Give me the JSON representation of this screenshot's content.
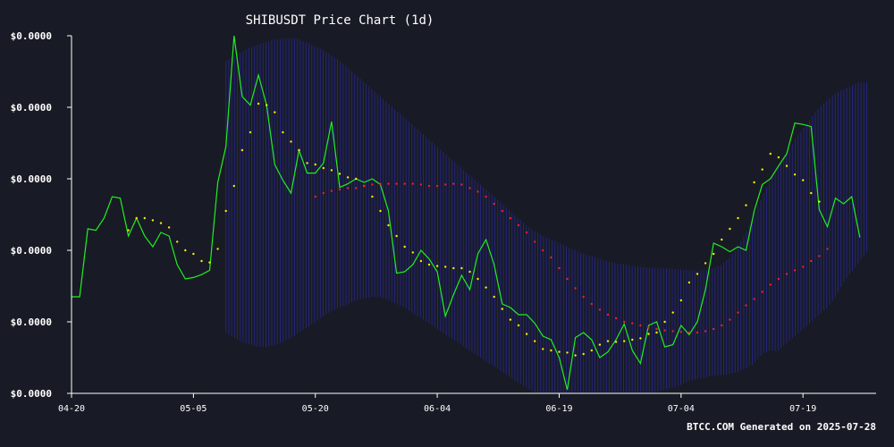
{
  "chart_data": {
    "type": "line",
    "title": "SHIBUSDT Price Chart (1d)",
    "footer": "BTCC.COM Generated on 2025-07-28",
    "xlabel": "",
    "ylabel": "",
    "x_tick_labels": [
      "04-20",
      "05-05",
      "05-20",
      "06-04",
      "06-19",
      "07-04",
      "07-19"
    ],
    "y_tick_labels": [
      "$0.0000",
      "$0.0000",
      "$0.0000",
      "$0.0000",
      "$0.0000",
      "$0.0000"
    ],
    "y_tick_values": [
      0,
      1,
      2,
      3,
      4,
      5
    ],
    "ylim": [
      0,
      5
    ],
    "x_range": [
      0,
      99
    ],
    "x_tick_positions": [
      0,
      15,
      30,
      45,
      60,
      75,
      90
    ],
    "grid": false,
    "legend": "none",
    "colors": {
      "price": "#22ee22",
      "short_ma": "#ffee00",
      "long_ma": "#ee2222",
      "band": "#2a2a9a",
      "axis": "#ffffff",
      "background": "#181b25"
    },
    "series": [
      {
        "key": "price",
        "x_start": 0,
        "values": [
          1.35,
          1.35,
          2.3,
          2.28,
          2.45,
          2.75,
          2.73,
          2.2,
          2.45,
          2.2,
          2.05,
          2.25,
          2.2,
          1.8,
          1.6,
          1.62,
          1.66,
          1.72,
          2.95,
          3.45,
          5.0,
          4.15,
          4.03,
          4.45,
          4.03,
          3.2,
          2.98,
          2.8,
          3.4,
          3.08,
          3.08,
          3.22,
          3.8,
          2.88,
          2.93,
          3.0,
          2.95,
          3.0,
          2.92,
          2.55,
          1.68,
          1.7,
          1.8,
          2.0,
          1.88,
          1.7,
          1.08,
          1.38,
          1.65,
          1.45,
          1.95,
          2.15,
          1.8,
          1.25,
          1.2,
          1.1,
          1.1,
          0.98,
          0.8,
          0.75,
          0.5,
          0.05,
          0.78,
          0.85,
          0.75,
          0.5,
          0.58,
          0.75,
          0.97,
          0.6,
          0.42,
          0.95,
          1.0,
          0.65,
          0.68,
          0.95,
          0.82,
          1.0,
          1.45,
          2.1,
          2.05,
          1.98,
          2.05,
          2.0,
          2.55,
          2.92,
          3.0,
          3.18,
          3.35,
          3.78,
          3.76,
          3.73,
          2.57,
          2.33,
          2.73,
          2.65,
          2.75,
          2.18
        ]
      },
      {
        "key": "short_ma",
        "x_start": 7,
        "values": [
          2.28,
          2.45,
          2.45,
          2.42,
          2.38,
          2.32,
          2.12,
          2.0,
          1.95,
          1.85,
          1.83,
          2.02,
          2.55,
          2.9,
          3.4,
          3.65,
          4.05,
          4.03,
          3.93,
          3.65,
          3.52,
          3.4,
          3.22,
          3.2,
          3.15,
          3.12,
          3.07,
          3.02,
          3.0,
          2.9,
          2.75,
          2.55,
          2.35,
          2.2,
          2.05,
          1.97,
          1.85,
          1.8,
          1.78,
          1.77,
          1.75,
          1.75,
          1.7,
          1.6,
          1.48,
          1.35,
          1.18,
          1.03,
          0.95,
          0.83,
          0.73,
          0.62,
          0.6,
          0.58,
          0.57,
          0.53,
          0.55,
          0.6,
          0.68,
          0.73,
          0.72,
          0.73,
          0.75,
          0.77,
          0.83,
          0.85,
          1.0,
          1.13,
          1.3,
          1.55,
          1.67,
          1.82,
          1.95,
          2.15,
          2.3,
          2.45,
          2.63,
          2.95,
          3.13,
          3.35,
          3.3,
          3.18,
          3.06,
          2.98,
          2.8,
          2.68
        ]
      },
      {
        "key": "long_ma",
        "x_start": 30,
        "values": [
          2.75,
          2.8,
          2.83,
          2.85,
          2.87,
          2.87,
          2.9,
          2.92,
          2.93,
          2.93,
          2.93,
          2.93,
          2.93,
          2.92,
          2.9,
          2.9,
          2.92,
          2.93,
          2.92,
          2.87,
          2.82,
          2.75,
          2.65,
          2.55,
          2.45,
          2.35,
          2.25,
          2.12,
          2.0,
          1.9,
          1.75,
          1.6,
          1.47,
          1.35,
          1.25,
          1.17,
          1.1,
          1.05,
          1.0,
          0.98,
          0.95,
          0.92,
          0.9,
          0.88,
          0.87,
          0.86,
          0.85,
          0.85,
          0.87,
          0.9,
          0.95,
          1.03,
          1.13,
          1.23,
          1.32,
          1.42,
          1.52,
          1.6,
          1.67,
          1.72,
          1.77,
          1.85,
          1.92,
          2.02
        ]
      },
      {
        "key": "band_upper",
        "x_start": 19,
        "values": [
          4.65,
          4.72,
          4.78,
          4.83,
          4.88,
          4.92,
          4.95,
          4.96,
          4.97,
          4.95,
          4.9,
          4.85,
          4.8,
          4.72,
          4.65,
          4.55,
          4.45,
          4.35,
          4.25,
          4.15,
          4.05,
          3.95,
          3.85,
          3.75,
          3.65,
          3.55,
          3.45,
          3.35,
          3.25,
          3.15,
          3.05,
          2.95,
          2.85,
          2.75,
          2.65,
          2.55,
          2.45,
          2.35,
          2.27,
          2.2,
          2.15,
          2.1,
          2.05,
          2.0,
          1.95,
          1.92,
          1.88,
          1.85,
          1.82,
          1.8,
          1.78,
          1.77,
          1.76,
          1.75,
          1.75,
          1.74,
          1.73,
          1.72,
          1.72,
          1.72,
          1.75,
          1.8,
          1.9,
          2.05,
          2.25,
          2.5,
          2.75,
          3.0,
          3.2,
          3.35,
          3.55,
          3.7,
          3.85,
          4.0,
          4.1,
          4.2,
          4.25,
          4.3,
          4.35,
          4.35
        ]
      },
      {
        "key": "band_lower",
        "x_start": 19,
        "values": [
          0.85,
          0.78,
          0.72,
          0.68,
          0.65,
          0.65,
          0.68,
          0.72,
          0.78,
          0.85,
          0.92,
          1.0,
          1.08,
          1.15,
          1.2,
          1.25,
          1.3,
          1.33,
          1.35,
          1.35,
          1.3,
          1.25,
          1.2,
          1.12,
          1.05,
          0.98,
          0.9,
          0.82,
          0.75,
          0.68,
          0.6,
          0.52,
          0.45,
          0.38,
          0.3,
          0.22,
          0.15,
          0.08,
          0.02,
          0.0,
          0.0,
          0.0,
          0.0,
          0.02,
          0.0,
          0.0,
          0.0,
          0.0,
          0.0,
          0.0,
          0.0,
          0.0,
          0.0,
          0.02,
          0.05,
          0.08,
          0.12,
          0.18,
          0.2,
          0.22,
          0.25,
          0.25,
          0.28,
          0.3,
          0.35,
          0.42,
          0.55,
          0.6,
          0.6,
          0.7,
          0.8,
          0.9,
          1.0,
          1.1,
          1.2,
          1.35,
          1.55,
          1.7,
          1.85,
          2.0
        ]
      }
    ]
  }
}
